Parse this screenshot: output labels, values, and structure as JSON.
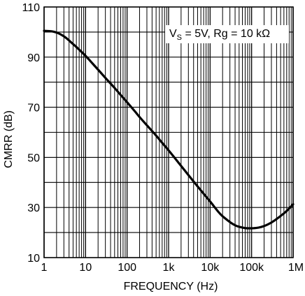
{
  "chart_data": {
    "type": "line",
    "title": "",
    "xlabel": "FREQUENCY (Hz)",
    "ylabel": "CMRR (dB)",
    "x_scale": "log",
    "xlim": [
      1,
      1000000
    ],
    "ylim": [
      10,
      110
    ],
    "grid": true,
    "x_ticks": [
      {
        "value": 1,
        "label": "1"
      },
      {
        "value": 10,
        "label": "10"
      },
      {
        "value": 100,
        "label": "100"
      },
      {
        "value": 1000,
        "label": "1k"
      },
      {
        "value": 10000,
        "label": "10k"
      },
      {
        "value": 100000,
        "label": "100k"
      },
      {
        "value": 1000000,
        "label": "1M"
      }
    ],
    "y_ticks": [
      {
        "value": 110,
        "label": "110"
      },
      {
        "value": 90,
        "label": "90"
      },
      {
        "value": 70,
        "label": "70"
      },
      {
        "value": 50,
        "label": "50"
      },
      {
        "value": 30,
        "label": "30"
      },
      {
        "value": 10,
        "label": "10"
      }
    ],
    "annotation": {
      "prefix": "V",
      "subscript": "S",
      "suffix": " = 5V, Rg = 10 kΩ"
    },
    "series": [
      {
        "color": "#000000",
        "x": [
          1,
          1.5,
          2,
          3,
          5,
          7,
          10,
          15,
          20,
          30,
          50,
          70,
          100,
          150,
          200,
          300,
          500,
          700,
          1000,
          2000,
          5000,
          10000,
          20000,
          50000,
          80000,
          100000,
          150000,
          200000,
          300000,
          500000,
          700000,
          1000000
        ],
        "y": [
          100.5,
          100.3,
          99.8,
          98.3,
          95.2,
          93.0,
          90.5,
          87.3,
          85.0,
          81.7,
          77.7,
          74.9,
          72.0,
          68.6,
          66.1,
          62.8,
          58.7,
          55.8,
          52.8,
          46.6,
          38.4,
          32.4,
          26.5,
          22.3,
          21.7,
          21.7,
          22.0,
          22.6,
          24.0,
          26.6,
          28.6,
          31.3
        ]
      }
    ]
  }
}
